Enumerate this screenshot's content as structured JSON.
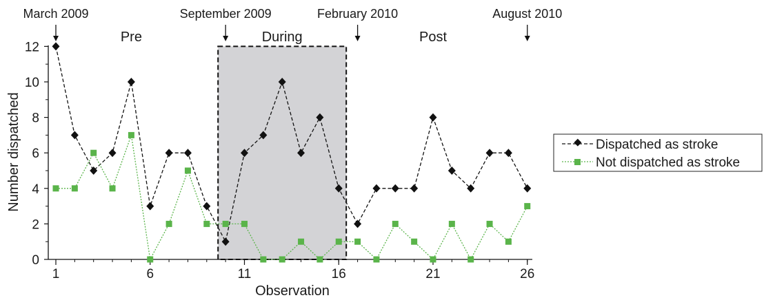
{
  "chart_data": {
    "type": "line",
    "xlabel": "Observation",
    "ylabel": "Number dispatched",
    "xlim": [
      0.5,
      26.5
    ],
    "ylim": [
      0,
      12
    ],
    "xticks": [
      1,
      6,
      11,
      16,
      21,
      26
    ],
    "yticks": [
      0,
      2,
      4,
      6,
      8,
      10,
      12
    ],
    "x": [
      1,
      2,
      3,
      4,
      5,
      6,
      7,
      8,
      9,
      10,
      11,
      12,
      13,
      14,
      15,
      16,
      17,
      18,
      19,
      20,
      21,
      22,
      23,
      24,
      25,
      26
    ],
    "series": [
      {
        "name": "Dispatched as stroke",
        "color": "#111111",
        "marker": "diamond",
        "line": "dashed",
        "values": [
          12,
          7,
          5,
          6,
          10,
          3,
          6,
          6,
          3,
          1,
          6,
          7,
          10,
          6,
          8,
          4,
          2,
          4,
          4,
          4,
          8,
          5,
          4,
          6,
          6,
          4
        ]
      },
      {
        "name": "Not dispatched as stroke",
        "color": "#5ab44a",
        "marker": "square",
        "line": "dotted",
        "values": [
          4,
          4,
          6,
          4,
          7,
          0,
          2,
          5,
          2,
          2,
          2,
          0,
          0,
          1,
          0,
          1,
          1,
          0,
          2,
          1,
          0,
          2,
          0,
          2,
          1,
          3
        ]
      }
    ],
    "shaded_region": {
      "x_start": 9.6,
      "x_end": 16.4,
      "color": "#d3d3d6"
    },
    "period_labels": [
      {
        "text": "Pre",
        "x": 5
      },
      {
        "text": "During",
        "x": 13
      },
      {
        "text": "Post",
        "x": 21
      }
    ],
    "date_markers": [
      {
        "text": "March 2009",
        "x": 1
      },
      {
        "text": "September 2009",
        "x": 10
      },
      {
        "text": "February 2010",
        "x": 17
      },
      {
        "text": "August 2010",
        "x": 26
      }
    ],
    "legend_position": "right",
    "grid": false
  }
}
